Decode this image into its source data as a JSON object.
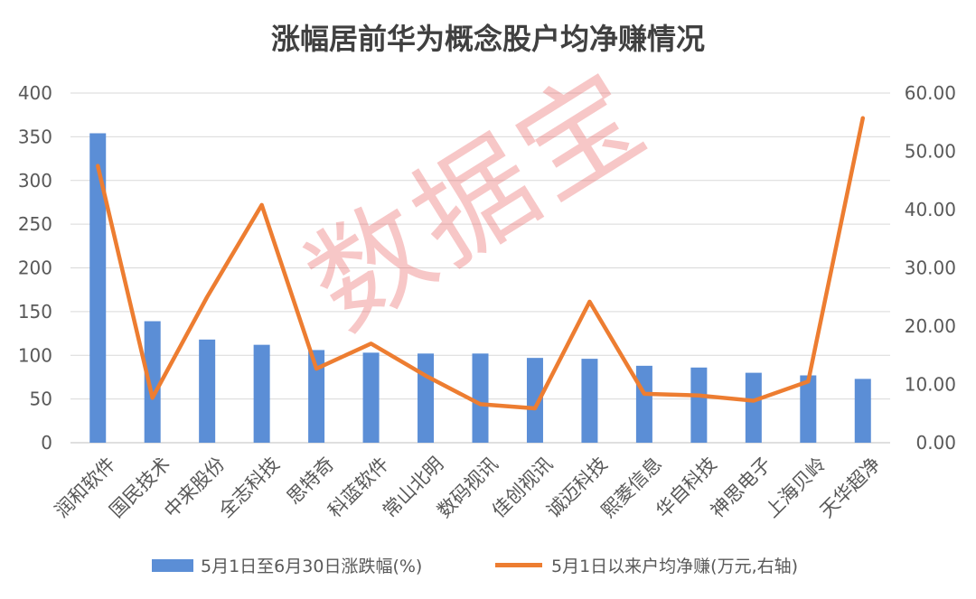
{
  "chart_data": {
    "type": "bar+line",
    "title": "涨幅居前华为概念股户均净赚情况",
    "watermark": "数据宝",
    "categories": [
      "润和软件",
      "国民技术",
      "中来股份",
      "全志科技",
      "思特奇",
      "科蓝软件",
      "常山北明",
      "数码视讯",
      "佳创视讯",
      "诚迈科技",
      "熙菱信息",
      "华自科技",
      "神思电子",
      "上海贝岭",
      "天华超净"
    ],
    "series": [
      {
        "name": "5月1日至6月30日涨跌幅(%)",
        "type": "bar",
        "axis": "left",
        "color": "#5B8ED6",
        "values": [
          354,
          139,
          118,
          112,
          106,
          103,
          102,
          102,
          97,
          96,
          88,
          86,
          80,
          77,
          73
        ]
      },
      {
        "name": "5月1日以来户均净赚(万元,右轴)",
        "type": "line",
        "axis": "right",
        "color": "#ED7D31",
        "values": [
          47.5,
          7.7,
          25.0,
          40.8,
          12.7,
          17.0,
          11.5,
          6.6,
          5.9,
          24.2,
          8.4,
          8.1,
          7.2,
          10.5,
          55.7
        ]
      }
    ],
    "y_left": {
      "lim": [
        0,
        400
      ],
      "ticks": [
        "0",
        "50",
        "100",
        "150",
        "200",
        "250",
        "300",
        "350",
        "400"
      ]
    },
    "y_right": {
      "lim": [
        0,
        60
      ],
      "ticks": [
        "0.00",
        "10.00",
        "20.00",
        "30.00",
        "40.00",
        "50.00",
        "60.00"
      ]
    },
    "grid": true,
    "legend": "bottom"
  }
}
